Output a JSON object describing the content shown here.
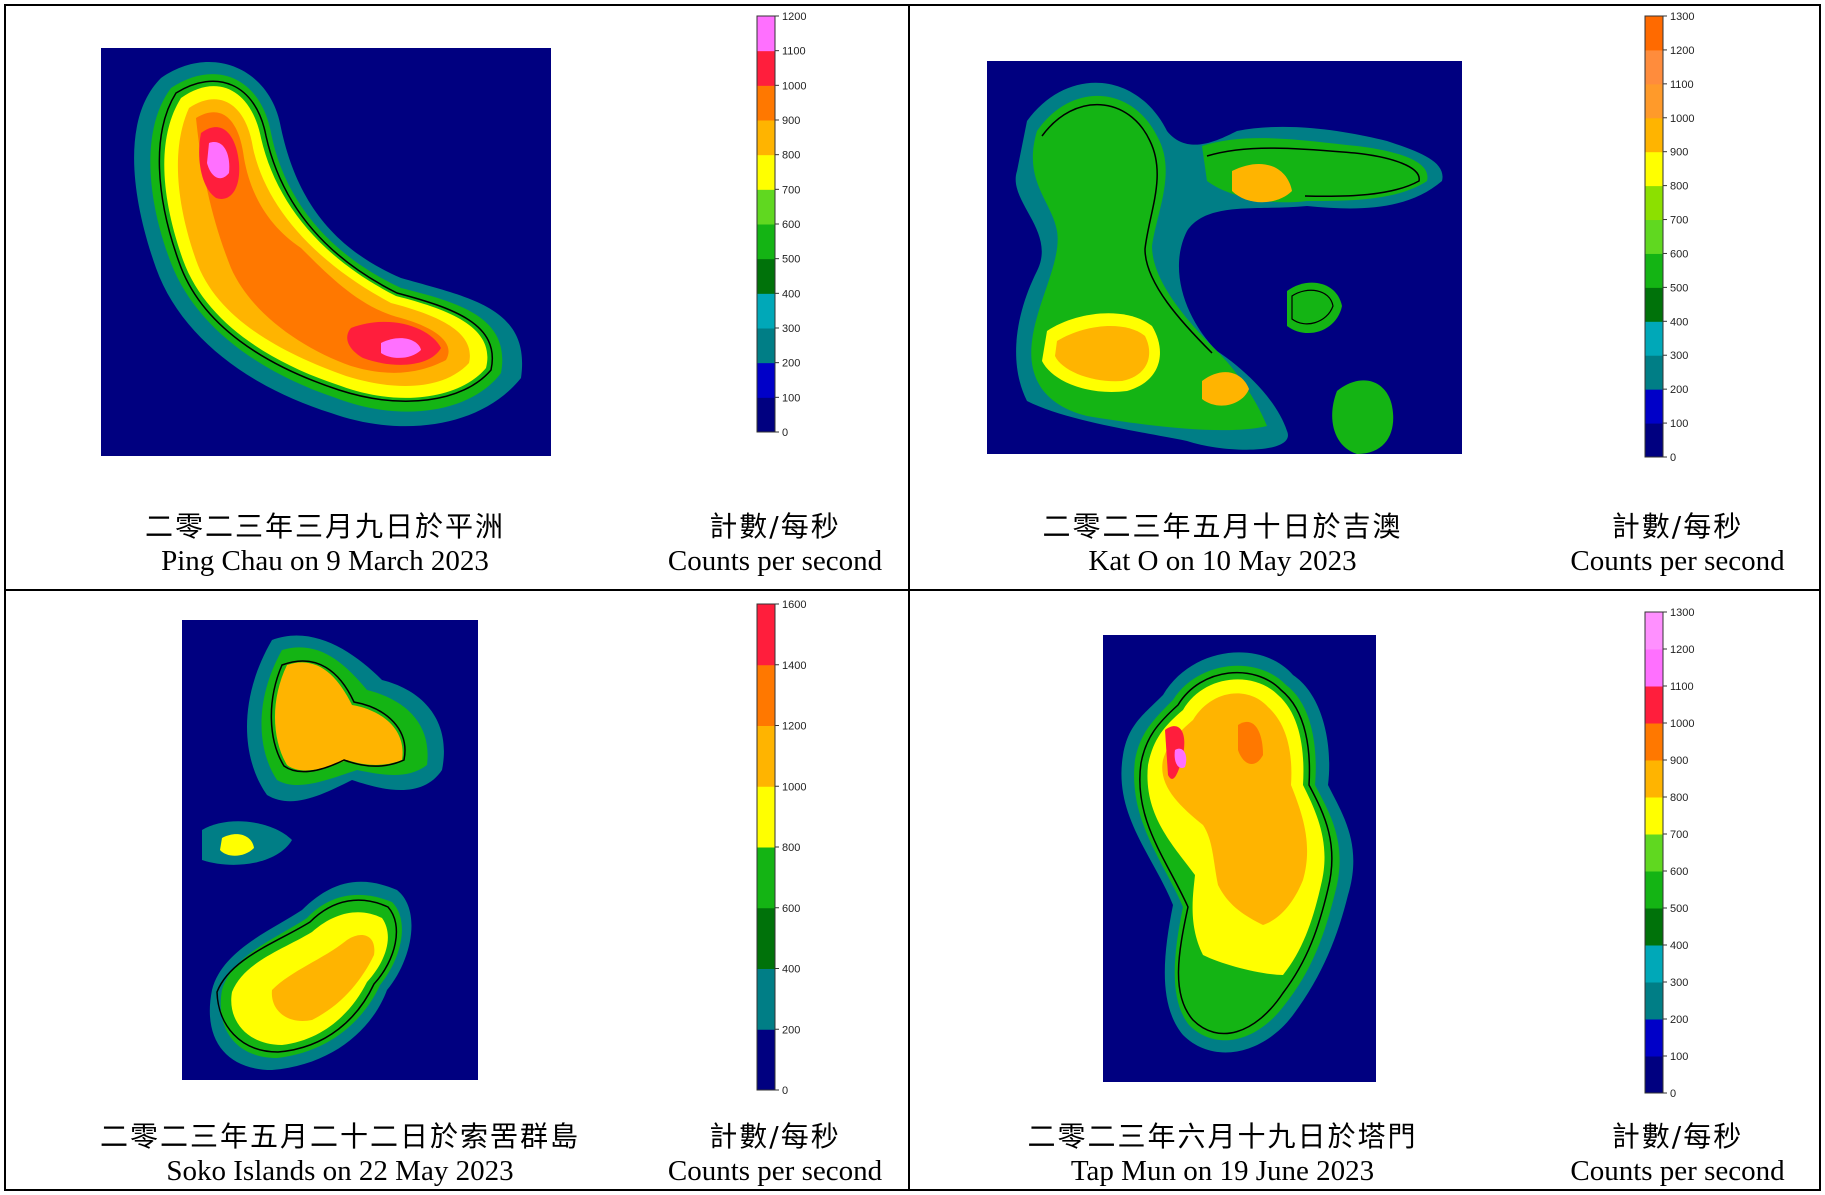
{
  "panels": [
    {
      "caption_zh": "二零二三年三月九日於平洲",
      "caption_en": "Ping Chau on 9 March 2023",
      "unit_zh": "計數/每秒",
      "unit_en": "Counts per second",
      "scale": {
        "min": 0,
        "max": 1200,
        "ticks": [
          "0",
          "100",
          "200",
          "300",
          "400",
          "500",
          "600",
          "700",
          "800",
          "900",
          "1000",
          "1100",
          "1200"
        ],
        "colors": [
          "#000080",
          "#0000c8",
          "#007e86",
          "#00a8b8",
          "#00720a",
          "#14b414",
          "#60d820",
          "#ffff00",
          "#ffb400",
          "#ff7800",
          "#ff1e3c",
          "#ff70ff"
        ]
      }
    },
    {
      "caption_zh": "二零二三年五月十日於吉澳",
      "caption_en": "Kat O on 10 May 2023",
      "unit_zh": "計數/每秒",
      "unit_en": "Counts per second",
      "scale": {
        "min": 0,
        "max": 1300,
        "ticks": [
          "0",
          "100",
          "200",
          "300",
          "400",
          "500",
          "600",
          "700",
          "800",
          "900",
          "1000",
          "1100",
          "1200",
          "1300"
        ],
        "colors": [
          "#000080",
          "#0000c8",
          "#007e86",
          "#00a8b8",
          "#00720a",
          "#14b414",
          "#60d820",
          "#8ce000",
          "#ffff00",
          "#ffb400",
          "#ff9a2a",
          "#ff8c3c",
          "#ff6a00"
        ]
      }
    },
    {
      "caption_zh": "二零二三年五月二十二日於索罟群島",
      "caption_en": "Soko Islands on 22 May 2023",
      "unit_zh": "計數/每秒",
      "unit_en": "Counts per second",
      "scale": {
        "min": 0,
        "max": 1600,
        "ticks": [
          "0",
          "200",
          "400",
          "600",
          "800",
          "1000",
          "1200",
          "1400",
          "1600"
        ],
        "colors": [
          "#000080",
          "#007e86",
          "#00720a",
          "#14b414",
          "#ffff00",
          "#ffb400",
          "#ff7800",
          "#ff1e3c"
        ]
      }
    },
    {
      "caption_zh": "二零二三年六月十九日於塔門",
      "caption_en": "Tap Mun on 19 June 2023",
      "unit_zh": "計數/每秒",
      "unit_en": "Counts per second",
      "scale": {
        "min": 0,
        "max": 1300,
        "ticks": [
          "0",
          "100",
          "200",
          "300",
          "400",
          "500",
          "600",
          "700",
          "800",
          "900",
          "1000",
          "1100",
          "1200",
          "1300"
        ],
        "colors": [
          "#000080",
          "#0000c8",
          "#007e86",
          "#00a8b8",
          "#00720a",
          "#14b414",
          "#60d820",
          "#ffff00",
          "#ffb400",
          "#ff7800",
          "#ff1e3c",
          "#ff70ff",
          "#ff90ff"
        ]
      }
    }
  ]
}
